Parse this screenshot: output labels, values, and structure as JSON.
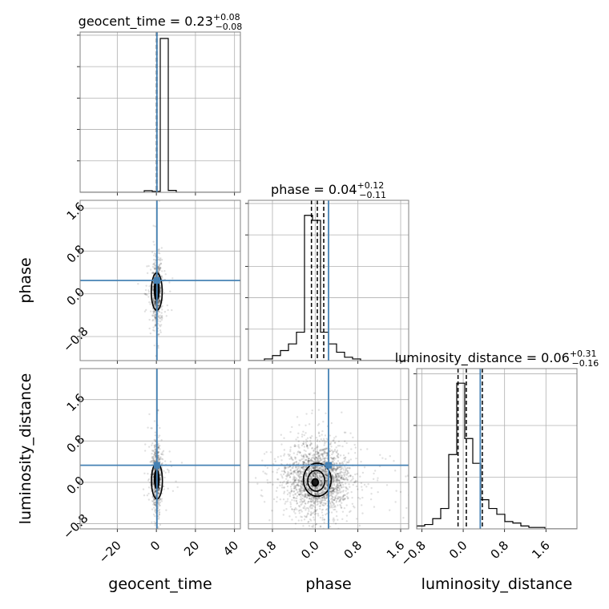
{
  "chart_data": {
    "type": "corner",
    "parameters": [
      "geocent_time",
      "phase",
      "luminosity_distance"
    ],
    "axis_labels": [
      "geocent_time",
      "phase",
      "luminosity_distance"
    ],
    "titles": [
      {
        "name": "geocent_time",
        "median": "0.23",
        "plus": "+0.08",
        "minus": "−0.08"
      },
      {
        "name": "phase",
        "median": "0.04",
        "plus": "+0.12",
        "minus": "−0.11"
      },
      {
        "name": "luminosity_distance",
        "median": "0.06",
        "plus": "+0.31",
        "minus": "−0.16"
      }
    ],
    "ranges": {
      "geocent_time": [
        -39,
        43
      ],
      "phase": [
        -1.25,
        1.75
      ],
      "luminosity_distance": [
        -0.9,
        2.2
      ]
    },
    "ticks": {
      "geocent_time": [
        -20,
        0,
        20,
        40
      ],
      "phase": [
        -0.8,
        0.0,
        0.8,
        1.6
      ],
      "luminosity_distance": [
        -0.8,
        0.0,
        0.8,
        1.6
      ]
    },
    "tick_labels": {
      "geocent_time": [
        "−20",
        "0",
        "20",
        "40"
      ],
      "phase": [
        "−0.8",
        "0.0",
        "0.8",
        "1.6"
      ],
      "luminosity_distance": [
        "−0.8",
        "0.0",
        "0.8",
        "1.6"
      ]
    },
    "truths": {
      "geocent_time": 0.3,
      "phase": 0.25,
      "luminosity_distance": 0.33
    },
    "quantiles": {
      "geocent_time": [
        0.15,
        0.23,
        0.31
      ],
      "phase": [
        -0.07,
        0.04,
        0.16
      ],
      "luminosity_distance": [
        -0.1,
        0.06,
        0.37
      ]
    },
    "histograms": {
      "geocent_time": {
        "edges": [
          -39,
          -34.9,
          -30.8,
          -26.7,
          -22.6,
          -18.5,
          -14.4,
          -10.3,
          -6.2,
          -2.1,
          2.0,
          6.1,
          10.2,
          14.3,
          18.4,
          22.5,
          26.6,
          30.7,
          34.8,
          38.9,
          43
        ],
        "counts": [
          0,
          0,
          0,
          0,
          0,
          0,
          0,
          0,
          0.01,
          0.006,
          0.96,
          0.012,
          0,
          0,
          0,
          0,
          0,
          0,
          0,
          0
        ]
      },
      "phase": {
        "edges": [
          -1.25,
          -1.1,
          -0.95,
          -0.8,
          -0.65,
          -0.5,
          -0.35,
          -0.2,
          -0.05,
          0.1,
          0.25,
          0.4,
          0.55,
          0.7,
          0.85,
          1.0,
          1.15,
          1.3,
          1.45,
          1.6,
          1.75
        ],
        "counts": [
          0,
          0,
          0.01,
          0.03,
          0.06,
          0.1,
          0.17,
          0.87,
          0.84,
          0.17,
          0.1,
          0.05,
          0.02,
          0.01,
          0,
          0,
          0,
          0,
          0,
          0
        ]
      },
      "luminosity_distance": {
        "edges": [
          -0.9,
          -0.745,
          -0.59,
          -0.435,
          -0.28,
          -0.125,
          0.03,
          0.185,
          0.34,
          0.495,
          0.65,
          0.805,
          0.96,
          1.115,
          1.27,
          1.425,
          1.58,
          1.735,
          1.89,
          2.045,
          2.2
        ],
        "counts": [
          0.02,
          0.03,
          0.07,
          0.14,
          0.51,
          1.0,
          0.62,
          0.45,
          0.2,
          0.14,
          0.1,
          0.05,
          0.04,
          0.02,
          0.01,
          0.01,
          0,
          0,
          0,
          0
        ]
      }
    },
    "ymax": {
      "geocent_time": 1.0,
      "phase": 0.96,
      "luminosity_distance": 1.1
    },
    "hist_ticks": {
      "geocent_time": 5,
      "phase": 5,
      "luminosity_distance": 3
    },
    "contours": {
      "geocent_time|phase": [
        {
          "cx": 0.2,
          "cy": 0.08,
          "rx": 1.2,
          "ry": 0.2
        },
        {
          "cx": 0.2,
          "cy": 0.04,
          "rx": 2.8,
          "ry": 0.35
        }
      ],
      "geocent_time|luminosity_distance": [
        {
          "cx": 0.2,
          "cy": 0.06,
          "rx": 1.2,
          "ry": 0.18
        },
        {
          "cx": 0.3,
          "cy": 0.03,
          "rx": 2.8,
          "ry": 0.35
        }
      ],
      "phase|luminosity_distance": [
        {
          "cx": 0.0,
          "cy": 0.0,
          "rx": 0.06,
          "ry": 0.07
        },
        {
          "cx": 0.02,
          "cy": 0.03,
          "rx": 0.16,
          "ry": 0.2
        },
        {
          "cx": 0.04,
          "cy": 0.05,
          "rx": 0.26,
          "ry": 0.32
        }
      ]
    },
    "scatter_sigma": {
      "geocent_time": 1.2,
      "phase": 0.3,
      "luminosity_distance": 0.33
    },
    "colors": {
      "truth": "#4682b4",
      "hist": "#000000",
      "grid": "#b0b0b0",
      "points": "#000000"
    },
    "grid": true
  }
}
